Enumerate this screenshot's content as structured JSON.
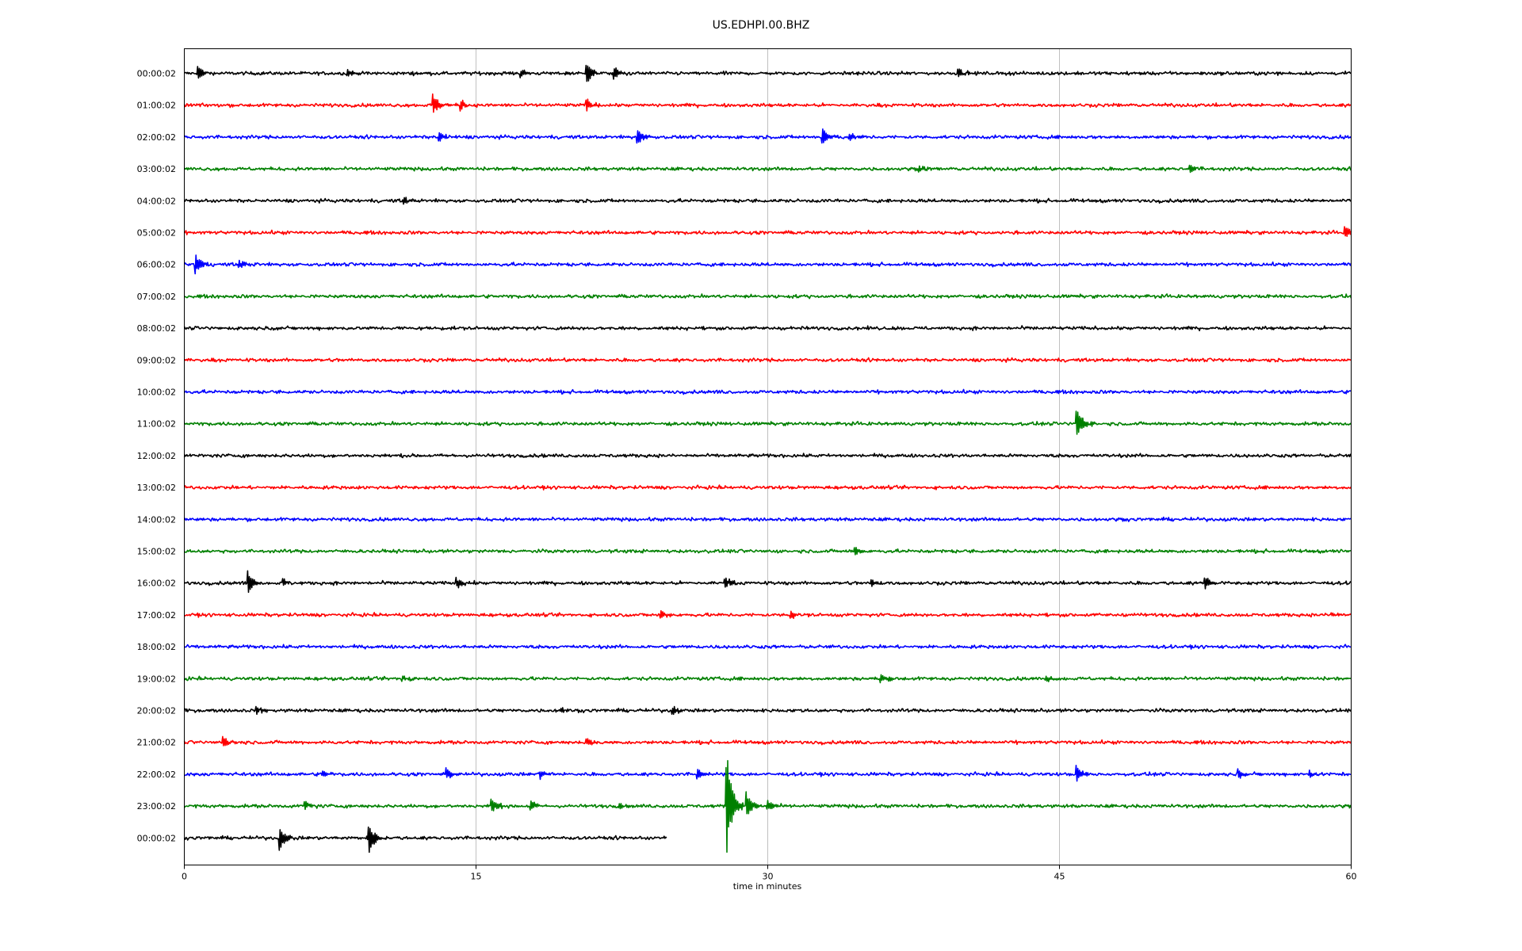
{
  "chart_data": {
    "type": "line",
    "title": "US.EDHPI.00.BHZ",
    "xlabel": "time in minutes",
    "ylabel": "",
    "xlim": [
      0,
      60
    ],
    "x_ticks": [
      "0",
      "15",
      "30",
      "45",
      "60"
    ],
    "grid": "vertical",
    "legend": "none",
    "colors": [
      "#000000",
      "#ff0000",
      "#0000ff",
      "#008000"
    ],
    "traces": [
      {
        "label": "00:00:02",
        "color": "#000000",
        "end_minute": 60,
        "amplitude": 0.6,
        "events": [
          {
            "t": 0.7,
            "amp": 4.5
          },
          {
            "t": 8.4,
            "amp": 1.8
          },
          {
            "t": 17.3,
            "amp": 2.5
          },
          {
            "t": 20.7,
            "amp": 7
          },
          {
            "t": 22.1,
            "amp": 3.5
          },
          {
            "t": 39.8,
            "amp": 3
          }
        ]
      },
      {
        "label": "01:00:02",
        "color": "#ff0000",
        "end_minute": 60,
        "amplitude": 0.6,
        "events": [
          {
            "t": 12.8,
            "amp": 6
          },
          {
            "t": 14.2,
            "amp": 4
          },
          {
            "t": 20.7,
            "amp": 3.5
          }
        ]
      },
      {
        "label": "02:00:02",
        "color": "#0000ff",
        "end_minute": 60,
        "amplitude": 0.6,
        "events": [
          {
            "t": 13.1,
            "amp": 2.5
          },
          {
            "t": 23.3,
            "amp": 4.5
          },
          {
            "t": 32.8,
            "amp": 6
          },
          {
            "t": 34.2,
            "amp": 2.5
          }
        ]
      },
      {
        "label": "03:00:02",
        "color": "#008000",
        "end_minute": 60,
        "amplitude": 0.6,
        "events": [
          {
            "t": 37.8,
            "amp": 1.5
          },
          {
            "t": 51.7,
            "amp": 3
          }
        ]
      },
      {
        "label": "04:00:02",
        "color": "#000000",
        "end_minute": 60,
        "amplitude": 0.6,
        "events": [
          {
            "t": 11.3,
            "amp": 2
          }
        ]
      },
      {
        "label": "05:00:02",
        "color": "#ff0000",
        "end_minute": 60,
        "amplitude": 0.6,
        "events": [
          {
            "t": 59.7,
            "amp": 4
          }
        ]
      },
      {
        "label": "06:00:02",
        "color": "#0000ff",
        "end_minute": 60,
        "amplitude": 0.6,
        "events": [
          {
            "t": 0.6,
            "amp": 6
          },
          {
            "t": 2.8,
            "amp": 3
          }
        ]
      },
      {
        "label": "07:00:02",
        "color": "#008000",
        "end_minute": 60,
        "amplitude": 0.6,
        "events": []
      },
      {
        "label": "08:00:02",
        "color": "#000000",
        "end_minute": 60,
        "amplitude": 0.6,
        "events": []
      },
      {
        "label": "09:00:02",
        "color": "#ff0000",
        "end_minute": 60,
        "amplitude": 0.6,
        "events": []
      },
      {
        "label": "10:00:02",
        "color": "#0000ff",
        "end_minute": 60,
        "amplitude": 0.6,
        "events": []
      },
      {
        "label": "11:00:02",
        "color": "#008000",
        "end_minute": 60,
        "amplitude": 0.6,
        "events": [
          {
            "t": 45.9,
            "amp": 10
          }
        ]
      },
      {
        "label": "12:00:02",
        "color": "#000000",
        "end_minute": 60,
        "amplitude": 0.6,
        "events": []
      },
      {
        "label": "13:00:02",
        "color": "#ff0000",
        "end_minute": 60,
        "amplitude": 0.6,
        "events": []
      },
      {
        "label": "14:00:02",
        "color": "#0000ff",
        "end_minute": 60,
        "amplitude": 0.6,
        "events": []
      },
      {
        "label": "15:00:02",
        "color": "#008000",
        "end_minute": 60,
        "amplitude": 0.6,
        "events": [
          {
            "t": 34.5,
            "amp": 2
          }
        ]
      },
      {
        "label": "16:00:02",
        "color": "#000000",
        "end_minute": 60,
        "amplitude": 0.6,
        "events": [
          {
            "t": 3.3,
            "amp": 7
          },
          {
            "t": 5.1,
            "amp": 2
          },
          {
            "t": 14,
            "amp": 3
          },
          {
            "t": 27.8,
            "amp": 4
          },
          {
            "t": 35.3,
            "amp": 2
          },
          {
            "t": 52.5,
            "amp": 3.5
          }
        ]
      },
      {
        "label": "17:00:02",
        "color": "#ff0000",
        "end_minute": 60,
        "amplitude": 0.6,
        "events": [
          {
            "t": 24.5,
            "amp": 2.5
          },
          {
            "t": 31.2,
            "amp": 2.5
          },
          {
            "t": 48.3,
            "amp": 1.2
          },
          {
            "t": 59,
            "amp": 1.2
          }
        ]
      },
      {
        "label": "18:00:02",
        "color": "#0000ff",
        "end_minute": 60,
        "amplitude": 0.6,
        "events": []
      },
      {
        "label": "19:00:02",
        "color": "#008000",
        "end_minute": 60,
        "amplitude": 0.6,
        "events": [
          {
            "t": 11.2,
            "amp": 2
          },
          {
            "t": 35.8,
            "amp": 2.5
          },
          {
            "t": 44.3,
            "amp": 2
          }
        ]
      },
      {
        "label": "20:00:02",
        "color": "#000000",
        "end_minute": 60,
        "amplitude": 0.6,
        "events": [
          {
            "t": 3.7,
            "amp": 2.5
          },
          {
            "t": 19.4,
            "amp": 1.5
          },
          {
            "t": 25.1,
            "amp": 2.5
          }
        ]
      },
      {
        "label": "21:00:02",
        "color": "#ff0000",
        "end_minute": 60,
        "amplitude": 0.6,
        "events": [
          {
            "t": 2,
            "amp": 3.5
          },
          {
            "t": 20.7,
            "amp": 2.5
          }
        ]
      },
      {
        "label": "22:00:02",
        "color": "#0000ff",
        "end_minute": 60,
        "amplitude": 0.6,
        "events": [
          {
            "t": 7.1,
            "amp": 2
          },
          {
            "t": 13.5,
            "amp": 3
          },
          {
            "t": 18.3,
            "amp": 2.5
          },
          {
            "t": 26.4,
            "amp": 3
          },
          {
            "t": 45.9,
            "amp": 4
          },
          {
            "t": 54.2,
            "amp": 3
          },
          {
            "t": 57.9,
            "amp": 2
          }
        ]
      },
      {
        "label": "23:00:02",
        "color": "#008000",
        "end_minute": 60,
        "amplitude": 0.6,
        "events": [
          {
            "t": 6.2,
            "amp": 3
          },
          {
            "t": 15.8,
            "amp": 4.5
          },
          {
            "t": 17.8,
            "amp": 3
          },
          {
            "t": 22.4,
            "amp": 2
          },
          {
            "t": 27.9,
            "amp": 30
          },
          {
            "t": 28.9,
            "amp": 8
          },
          {
            "t": 30,
            "amp": 3
          }
        ]
      },
      {
        "label": "00:00:02",
        "color": "#000000",
        "end_minute": 24.8,
        "amplitude": 0.6,
        "events": [
          {
            "t": 4.9,
            "amp": -8
          },
          {
            "t": 9.5,
            "amp": -9
          }
        ]
      }
    ]
  }
}
